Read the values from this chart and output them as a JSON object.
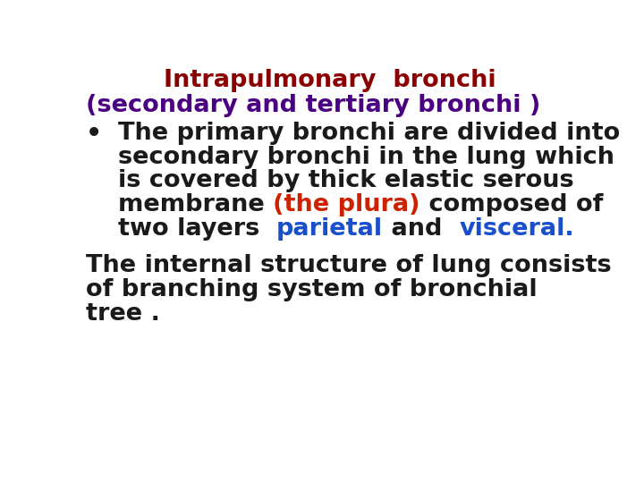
{
  "background_color": "#ffffff",
  "title_line1": "Intrapulmonary  bronchi",
  "title_line1_color": "#8b0000",
  "title_line2": "(secondary and tertiary bronchi )",
  "title_line2_color": "#4b0082",
  "bullet_lines": [
    [
      {
        "text": "The primary bronchi are divided into",
        "color": "#1a1a1a"
      }
    ],
    [
      {
        "text": "secondary bronchi in the lung which",
        "color": "#1a1a1a"
      }
    ],
    [
      {
        "text": "is covered by thick elastic serous",
        "color": "#1a1a1a"
      }
    ],
    [
      {
        "text": "membrane ",
        "color": "#1a1a1a"
      },
      {
        "text": "(the plura)",
        "color": "#cc2200"
      },
      {
        "text": " composed of",
        "color": "#1a1a1a"
      }
    ],
    [
      {
        "text": "two layers  ",
        "color": "#1a1a1a"
      },
      {
        "text": "parietal",
        "color": "#1a4fcc"
      },
      {
        "text": " and  ",
        "color": "#1a1a1a"
      },
      {
        "text": "visceral.",
        "color": "#1a4fcc"
      }
    ]
  ],
  "footer_lines": [
    [
      {
        "text": "The internal structure of lung consists",
        "color": "#1a1a1a"
      }
    ],
    [
      {
        "text": "of branching system of bronchial",
        "color": "#1a1a1a"
      }
    ],
    [
      {
        "text": "tree .",
        "color": "#1a1a1a"
      }
    ]
  ],
  "font_size": 19.5,
  "font_weight": "bold",
  "font_family": "DejaVu Sans"
}
